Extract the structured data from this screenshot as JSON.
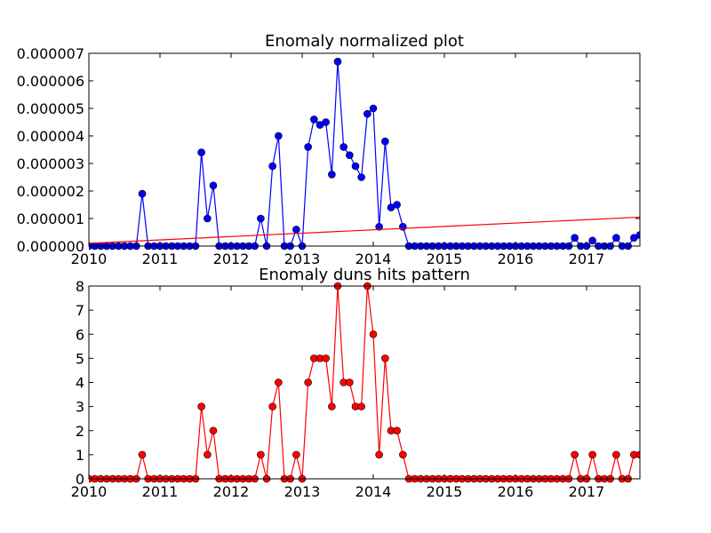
{
  "chart_data": [
    {
      "type": "line",
      "title": "Enomaly normalized plot",
      "xlabel": "",
      "ylabel": "",
      "xlim": [
        2010.0,
        2017.75
      ],
      "ylim": [
        0.0,
        7e-06
      ],
      "grid": false,
      "x_ticks": [
        "2010",
        "2011",
        "2012",
        "2013",
        "2014",
        "2015",
        "2016",
        "2017"
      ],
      "y_ticks": [
        "0.000000",
        "0.000001",
        "0.000002",
        "0.000003",
        "0.000004",
        "0.000005",
        "0.000006",
        "0.000007"
      ],
      "series": [
        {
          "color": "#0000ff",
          "marker": "circle",
          "values": [
            [
              2010.0,
              0.0
            ],
            [
              2010.083,
              0.0
            ],
            [
              2010.167,
              0.0
            ],
            [
              2010.25,
              0.0
            ],
            [
              2010.333,
              0.0
            ],
            [
              2010.417,
              0.0
            ],
            [
              2010.5,
              0.0
            ],
            [
              2010.583,
              0.0
            ],
            [
              2010.667,
              0.0
            ],
            [
              2010.75,
              1.9e-06
            ],
            [
              2010.833,
              0.0
            ],
            [
              2010.917,
              0.0
            ],
            [
              2011.0,
              0.0
            ],
            [
              2011.083,
              0.0
            ],
            [
              2011.167,
              0.0
            ],
            [
              2011.25,
              0.0
            ],
            [
              2011.333,
              0.0
            ],
            [
              2011.417,
              0.0
            ],
            [
              2011.5,
              0.0
            ],
            [
              2011.583,
              3.4e-06
            ],
            [
              2011.667,
              1e-06
            ],
            [
              2011.75,
              2.2e-06
            ],
            [
              2011.833,
              0.0
            ],
            [
              2011.917,
              0.0
            ],
            [
              2012.0,
              0.0
            ],
            [
              2012.083,
              0.0
            ],
            [
              2012.167,
              0.0
            ],
            [
              2012.25,
              0.0
            ],
            [
              2012.333,
              0.0
            ],
            [
              2012.417,
              1e-06
            ],
            [
              2012.5,
              0.0
            ],
            [
              2012.583,
              2.9e-06
            ],
            [
              2012.667,
              4e-06
            ],
            [
              2012.75,
              0.0
            ],
            [
              2012.833,
              0.0
            ],
            [
              2012.917,
              6e-07
            ],
            [
              2013.0,
              0.0
            ],
            [
              2013.083,
              3.6e-06
            ],
            [
              2013.167,
              4.6e-06
            ],
            [
              2013.25,
              4.4e-06
            ],
            [
              2013.333,
              4.5e-06
            ],
            [
              2013.417,
              2.6e-06
            ],
            [
              2013.5,
              6.7e-06
            ],
            [
              2013.583,
              3.6e-06
            ],
            [
              2013.667,
              3.3e-06
            ],
            [
              2013.75,
              2.9e-06
            ],
            [
              2013.833,
              2.5e-06
            ],
            [
              2013.917,
              4.8e-06
            ],
            [
              2014.0,
              5e-06
            ],
            [
              2014.083,
              7e-07
            ],
            [
              2014.167,
              3.8e-06
            ],
            [
              2014.25,
              1.4e-06
            ],
            [
              2014.333,
              1.5e-06
            ],
            [
              2014.417,
              7e-07
            ],
            [
              2014.5,
              0.0
            ],
            [
              2014.583,
              0.0
            ],
            [
              2014.667,
              0.0
            ],
            [
              2014.75,
              0.0
            ],
            [
              2014.833,
              0.0
            ],
            [
              2014.917,
              0.0
            ],
            [
              2015.0,
              0.0
            ],
            [
              2015.083,
              0.0
            ],
            [
              2015.167,
              0.0
            ],
            [
              2015.25,
              0.0
            ],
            [
              2015.333,
              0.0
            ],
            [
              2015.417,
              0.0
            ],
            [
              2015.5,
              0.0
            ],
            [
              2015.583,
              0.0
            ],
            [
              2015.667,
              0.0
            ],
            [
              2015.75,
              0.0
            ],
            [
              2015.833,
              0.0
            ],
            [
              2015.917,
              0.0
            ],
            [
              2016.0,
              0.0
            ],
            [
              2016.083,
              0.0
            ],
            [
              2016.167,
              0.0
            ],
            [
              2016.25,
              0.0
            ],
            [
              2016.333,
              0.0
            ],
            [
              2016.417,
              0.0
            ],
            [
              2016.5,
              0.0
            ],
            [
              2016.583,
              0.0
            ],
            [
              2016.667,
              0.0
            ],
            [
              2016.75,
              0.0
            ],
            [
              2016.833,
              3e-07
            ],
            [
              2016.917,
              0.0
            ],
            [
              2017.0,
              0.0
            ],
            [
              2017.083,
              2e-07
            ],
            [
              2017.167,
              0.0
            ],
            [
              2017.25,
              0.0
            ],
            [
              2017.333,
              0.0
            ],
            [
              2017.417,
              3e-07
            ],
            [
              2017.5,
              0.0
            ],
            [
              2017.583,
              0.0
            ],
            [
              2017.667,
              3e-07
            ],
            [
              2017.75,
              4e-07
            ]
          ]
        },
        {
          "color": "#ff0000",
          "marker": "none",
          "values": [
            [
              2010.0,
              1e-07
            ],
            [
              2017.75,
              1.05e-06
            ]
          ]
        }
      ]
    },
    {
      "type": "line",
      "title": "Enomaly duns hits pattern",
      "xlabel": "",
      "ylabel": "",
      "xlim": [
        2010.0,
        2017.75
      ],
      "ylim": [
        0,
        8
      ],
      "grid": false,
      "x_ticks": [
        "2010",
        "2011",
        "2012",
        "2013",
        "2014",
        "2015",
        "2016",
        "2017"
      ],
      "y_ticks": [
        "0",
        "1",
        "2",
        "3",
        "4",
        "5",
        "6",
        "7",
        "8"
      ],
      "series": [
        {
          "color": "#ff0000",
          "marker": "circle",
          "values": [
            [
              2010.0,
              0
            ],
            [
              2010.083,
              0
            ],
            [
              2010.167,
              0
            ],
            [
              2010.25,
              0
            ],
            [
              2010.333,
              0
            ],
            [
              2010.417,
              0
            ],
            [
              2010.5,
              0
            ],
            [
              2010.583,
              0
            ],
            [
              2010.667,
              0
            ],
            [
              2010.75,
              1
            ],
            [
              2010.833,
              0
            ],
            [
              2010.917,
              0
            ],
            [
              2011.0,
              0
            ],
            [
              2011.083,
              0
            ],
            [
              2011.167,
              0
            ],
            [
              2011.25,
              0
            ],
            [
              2011.333,
              0
            ],
            [
              2011.417,
              0
            ],
            [
              2011.5,
              0
            ],
            [
              2011.583,
              3
            ],
            [
              2011.667,
              1
            ],
            [
              2011.75,
              2
            ],
            [
              2011.833,
              0
            ],
            [
              2011.917,
              0
            ],
            [
              2012.0,
              0
            ],
            [
              2012.083,
              0
            ],
            [
              2012.167,
              0
            ],
            [
              2012.25,
              0
            ],
            [
              2012.333,
              0
            ],
            [
              2012.417,
              1
            ],
            [
              2012.5,
              0
            ],
            [
              2012.583,
              3
            ],
            [
              2012.667,
              4
            ],
            [
              2012.75,
              0
            ],
            [
              2012.833,
              0
            ],
            [
              2012.917,
              1
            ],
            [
              2013.0,
              0
            ],
            [
              2013.083,
              4
            ],
            [
              2013.167,
              5
            ],
            [
              2013.25,
              5
            ],
            [
              2013.333,
              5
            ],
            [
              2013.417,
              3
            ],
            [
              2013.5,
              8
            ],
            [
              2013.583,
              4
            ],
            [
              2013.667,
              4
            ],
            [
              2013.75,
              3
            ],
            [
              2013.833,
              3
            ],
            [
              2013.917,
              8
            ],
            [
              2014.0,
              6
            ],
            [
              2014.083,
              1
            ],
            [
              2014.167,
              5
            ],
            [
              2014.25,
              2
            ],
            [
              2014.333,
              2
            ],
            [
              2014.417,
              1
            ],
            [
              2014.5,
              0
            ],
            [
              2014.583,
              0
            ],
            [
              2014.667,
              0
            ],
            [
              2014.75,
              0
            ],
            [
              2014.833,
              0
            ],
            [
              2014.917,
              0
            ],
            [
              2015.0,
              0
            ],
            [
              2015.083,
              0
            ],
            [
              2015.167,
              0
            ],
            [
              2015.25,
              0
            ],
            [
              2015.333,
              0
            ],
            [
              2015.417,
              0
            ],
            [
              2015.5,
              0
            ],
            [
              2015.583,
              0
            ],
            [
              2015.667,
              0
            ],
            [
              2015.75,
              0
            ],
            [
              2015.833,
              0
            ],
            [
              2015.917,
              0
            ],
            [
              2016.0,
              0
            ],
            [
              2016.083,
              0
            ],
            [
              2016.167,
              0
            ],
            [
              2016.25,
              0
            ],
            [
              2016.333,
              0
            ],
            [
              2016.417,
              0
            ],
            [
              2016.5,
              0
            ],
            [
              2016.583,
              0
            ],
            [
              2016.667,
              0
            ],
            [
              2016.75,
              0
            ],
            [
              2016.833,
              1
            ],
            [
              2016.917,
              0
            ],
            [
              2017.0,
              0
            ],
            [
              2017.083,
              1
            ],
            [
              2017.167,
              0
            ],
            [
              2017.25,
              0
            ],
            [
              2017.333,
              0
            ],
            [
              2017.417,
              1
            ],
            [
              2017.5,
              0
            ],
            [
              2017.583,
              0
            ],
            [
              2017.667,
              1
            ],
            [
              2017.75,
              1
            ]
          ]
        }
      ]
    }
  ]
}
